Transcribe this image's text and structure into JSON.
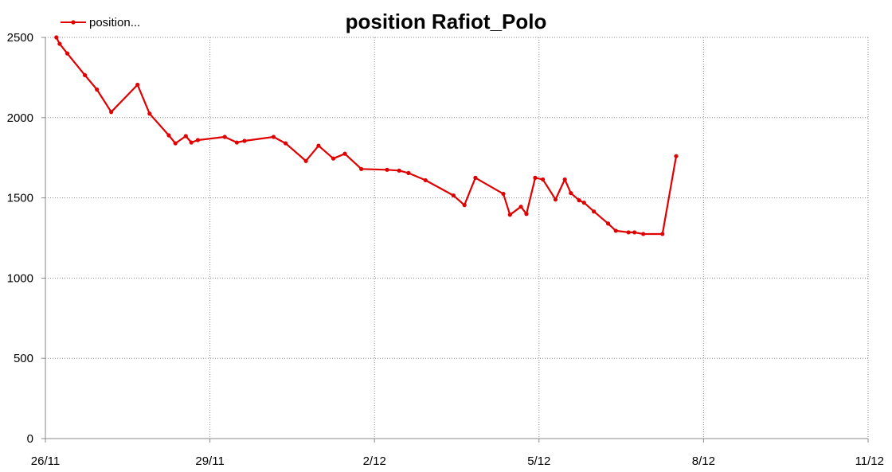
{
  "chart_data": {
    "type": "line",
    "title": "position Rafiot_Polo",
    "xlabel": "",
    "ylabel": "",
    "xlim": [
      0,
      15
    ],
    "ylim": [
      0,
      2500
    ],
    "xticks": [
      {
        "value": 0,
        "label": "26/11"
      },
      {
        "value": 3,
        "label": "29/11"
      },
      {
        "value": 6,
        "label": "2/12"
      },
      {
        "value": 9,
        "label": "5/12"
      },
      {
        "value": 12,
        "label": "8/12"
      },
      {
        "value": 15,
        "label": "11/12"
      }
    ],
    "yticks": [
      {
        "value": 0,
        "label": "0"
      },
      {
        "value": 500,
        "label": "500"
      },
      {
        "value": 1000,
        "label": "1000"
      },
      {
        "value": 1500,
        "label": "1500"
      },
      {
        "value": 2000,
        "label": "2000"
      },
      {
        "value": 2500,
        "label": "2500"
      }
    ],
    "grid": true,
    "legend_position": "top-left",
    "series": [
      {
        "name": "position...",
        "color": "#e00000",
        "x": [
          0.2,
          0.26,
          0.4,
          0.72,
          0.94,
          1.2,
          1.68,
          1.9,
          2.25,
          2.37,
          2.56,
          2.66,
          2.78,
          3.27,
          3.49,
          3.63,
          4.16,
          4.38,
          4.75,
          4.98,
          5.25,
          5.46,
          5.76,
          6.23,
          6.45,
          6.62,
          6.93,
          7.44,
          7.64,
          7.84,
          8.35,
          8.47,
          8.67,
          8.77,
          8.93,
          9.07,
          9.3,
          9.47,
          9.58,
          9.73,
          9.82,
          10.0,
          10.26,
          10.4,
          10.63,
          10.74,
          10.9,
          11.25,
          11.5
        ],
        "values": [
          2500,
          2460,
          2400,
          2265,
          2175,
          2035,
          2205,
          2025,
          1890,
          1840,
          1885,
          1845,
          1860,
          1880,
          1845,
          1855,
          1880,
          1840,
          1730,
          1825,
          1745,
          1775,
          1680,
          1675,
          1670,
          1655,
          1610,
          1515,
          1455,
          1625,
          1525,
          1395,
          1445,
          1400,
          1625,
          1615,
          1490,
          1615,
          1530,
          1485,
          1470,
          1415,
          1340,
          1295,
          1285,
          1285,
          1275,
          1275,
          1760
        ]
      }
    ]
  }
}
